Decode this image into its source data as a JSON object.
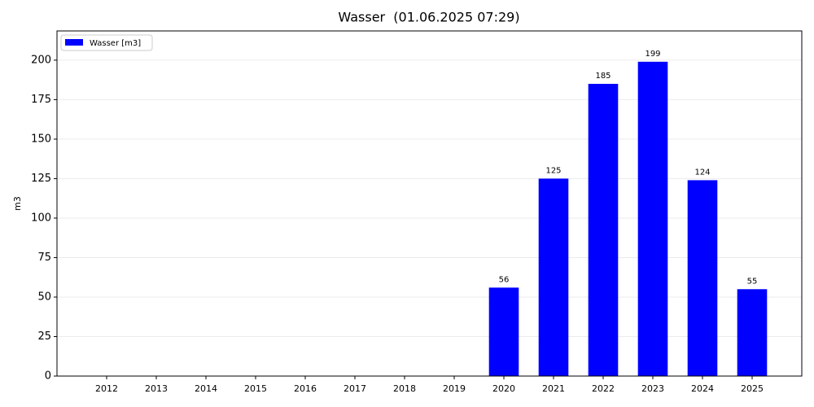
{
  "chart_data": {
    "type": "bar",
    "title": "Wasser  (01.06.2025 07:29)",
    "y_label": "m3",
    "categories": [
      "2012",
      "2013",
      "2014",
      "2015",
      "2016",
      "2017",
      "2018",
      "2019",
      "2020",
      "2021",
      "2022",
      "2023",
      "2024",
      "2025"
    ],
    "series": [
      {
        "name": "Wasser [m3]",
        "color": "#0000ff",
        "values": [
          0,
          0,
          0,
          0,
          0,
          0,
          0,
          0,
          56,
          125,
          185,
          199,
          124,
          55
        ]
      }
    ],
    "ylim": [
      0,
      218.5
    ],
    "yticks": [
      0,
      25,
      50,
      75,
      100,
      125,
      150,
      175,
      200
    ],
    "grid": true,
    "legend": "upper-left"
  }
}
